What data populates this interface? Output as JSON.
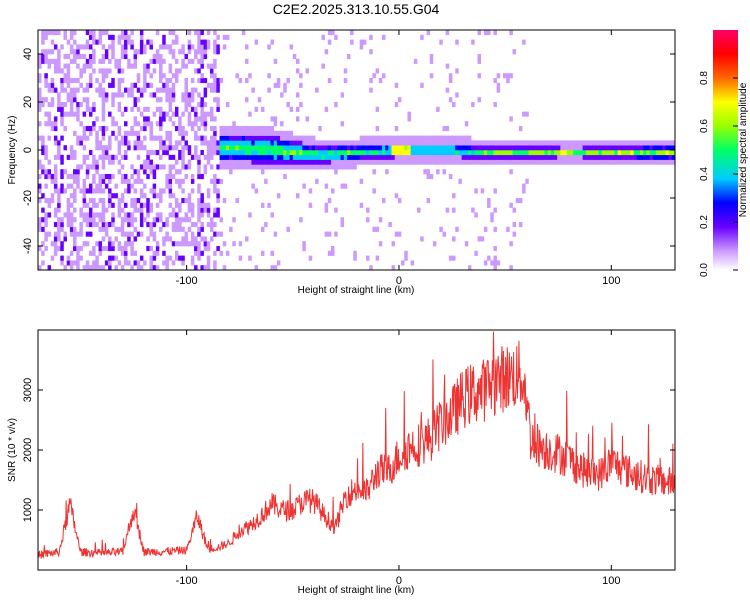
{
  "title": "C2E2.2025.313.10.55.G04",
  "chart_data": [
    {
      "type": "heatmap",
      "title": "C2E2.2025.313.10.55.G04",
      "xlabel": "Height of straight line (km)",
      "ylabel": "Frequency (Hz)",
      "xlim": [
        -170,
        130
      ],
      "ylim": [
        -50,
        50
      ],
      "x_ticks": [
        -100,
        0,
        100
      ],
      "y_ticks": [
        -40,
        -20,
        0,
        20,
        40
      ],
      "x_tick_labels": [
        "-100",
        "0",
        "100"
      ],
      "y_tick_labels": [
        "-40",
        "-20",
        "0",
        "20",
        "40"
      ],
      "colorbar": {
        "label": "Normalized spectral amplitude",
        "range": [
          0,
          1
        ],
        "ticks": [
          0.0,
          0.2,
          0.4,
          0.6,
          0.8
        ],
        "tick_labels": [
          "0.0",
          "0.2",
          "0.4",
          "0.6",
          "0.8"
        ],
        "colormap": "rainbow",
        "colors": [
          "#ffffff",
          "#cc99ff",
          "#6600ff",
          "#0000ff",
          "#00ccff",
          "#00ff66",
          "#99ff00",
          "#ffff00",
          "#ff6600",
          "#ff0000",
          "#ff0066"
        ]
      },
      "description_series": [
        {
          "name": "noise",
          "x_range": [
            -170,
            -85
          ],
          "amplitude": 0.15
        },
        {
          "name": "signal",
          "x": [
            -80,
            -60,
            -40,
            -20,
            0,
            20,
            40,
            60,
            80,
            100,
            130
          ],
          "center_hz": [
            1,
            0,
            -2,
            -1,
            0,
            0,
            -1,
            -1,
            -1,
            -1,
            -1
          ],
          "halfwidth_hz": [
            6,
            6,
            4,
            3,
            3,
            3,
            2.5,
            2.5,
            2,
            2.5,
            3
          ]
        }
      ]
    },
    {
      "type": "line",
      "xlabel": "Height of straight line (km)",
      "ylabel": "SNR (10 * v/v)",
      "xlim": [
        -170,
        130
      ],
      "ylim": [
        0,
        4000
      ],
      "x_ticks": [
        -100,
        0,
        100
      ],
      "y_ticks": [
        1000,
        2000,
        3000
      ],
      "x_tick_labels": [
        "-100",
        "0",
        "100"
      ],
      "y_tick_labels": [
        "1000",
        "2000",
        "3000"
      ],
      "color": "#ee3333",
      "series": [
        {
          "x": [
            -170,
            -160,
            -155,
            -150,
            -140,
            -130,
            -125,
            -120,
            -110,
            -100,
            -95,
            -90,
            -85,
            -80,
            -75,
            -70,
            -65,
            -60,
            -55,
            -50,
            -45,
            -40,
            -35,
            -30,
            -25,
            -20,
            -15,
            -10,
            -5,
            0,
            5,
            10,
            15,
            20,
            25,
            30,
            35,
            40,
            45,
            50,
            55,
            58,
            60,
            62,
            65,
            70,
            75,
            80,
            85,
            90,
            95,
            100,
            110,
            120,
            130
          ],
          "values": [
            250,
            300,
            1100,
            300,
            280,
            300,
            1000,
            300,
            310,
            330,
            900,
            350,
            380,
            450,
            650,
            750,
            900,
            1100,
            1000,
            1000,
            1150,
            1150,
            900,
            700,
            1250,
            1350,
            1300,
            1650,
            1650,
            1900,
            2050,
            2100,
            2200,
            2450,
            2600,
            2850,
            2950,
            3000,
            3150,
            3200,
            3250,
            3250,
            2900,
            2200,
            2100,
            2000,
            1950,
            1850,
            1700,
            1600,
            1600,
            1800,
            1600,
            1500,
            1450
          ]
        }
      ]
    }
  ]
}
